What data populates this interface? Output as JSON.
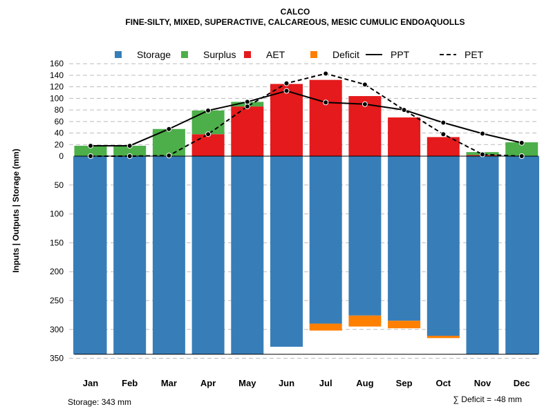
{
  "chart_data": {
    "type": "bar",
    "title": "CALCO",
    "subtitle": "FINE-SILTY, MIXED, SUPERACTIVE, CALCAREOUS, MESIC CUMULIC ENDOAQUOLLS",
    "ylabel": "Inputs | Outputs | Storage     (mm)",
    "categories": [
      "Jan",
      "Feb",
      "Mar",
      "Apr",
      "May",
      "Jun",
      "Jul",
      "Aug",
      "Sep",
      "Oct",
      "Nov",
      "Dec"
    ],
    "yticks_up": [
      0,
      20,
      40,
      60,
      80,
      100,
      120,
      140,
      160
    ],
    "yticks_down": [
      50,
      100,
      150,
      200,
      250,
      300,
      350
    ],
    "legend": [
      {
        "label": "Storage",
        "type": "box",
        "color": "#377EB8"
      },
      {
        "label": "Surplus",
        "type": "box",
        "color": "#4DAF4A"
      },
      {
        "label": "AET",
        "type": "box",
        "color": "#E41A1C"
      },
      {
        "label": "Deficit",
        "type": "box",
        "color": "#FF7F00"
      },
      {
        "label": "PPT",
        "type": "solid"
      },
      {
        "label": "PET",
        "type": "dashed"
      }
    ],
    "series": {
      "AET": [
        0,
        0,
        0,
        38,
        86,
        125,
        132,
        104,
        67,
        33,
        2,
        0
      ],
      "Surplus": [
        18,
        18,
        47,
        41,
        8,
        0,
        0,
        0,
        0,
        0,
        5,
        24
      ],
      "Storage": [
        343,
        343,
        343,
        343,
        343,
        330,
        290,
        276,
        285,
        311,
        343,
        343
      ],
      "Deficit": [
        0,
        0,
        0,
        0,
        0,
        0,
        12,
        19,
        13,
        4,
        0,
        0
      ],
      "PPT": [
        18,
        18,
        47,
        79,
        94,
        113,
        93,
        90,
        80,
        58,
        39,
        23
      ],
      "PET": [
        0,
        0,
        1,
        38,
        86,
        126,
        143,
        124,
        80,
        38,
        3,
        0
      ]
    },
    "storage_note": "Storage: 343 mm",
    "deficit_note": "∑ Deficit = -48 mm"
  }
}
